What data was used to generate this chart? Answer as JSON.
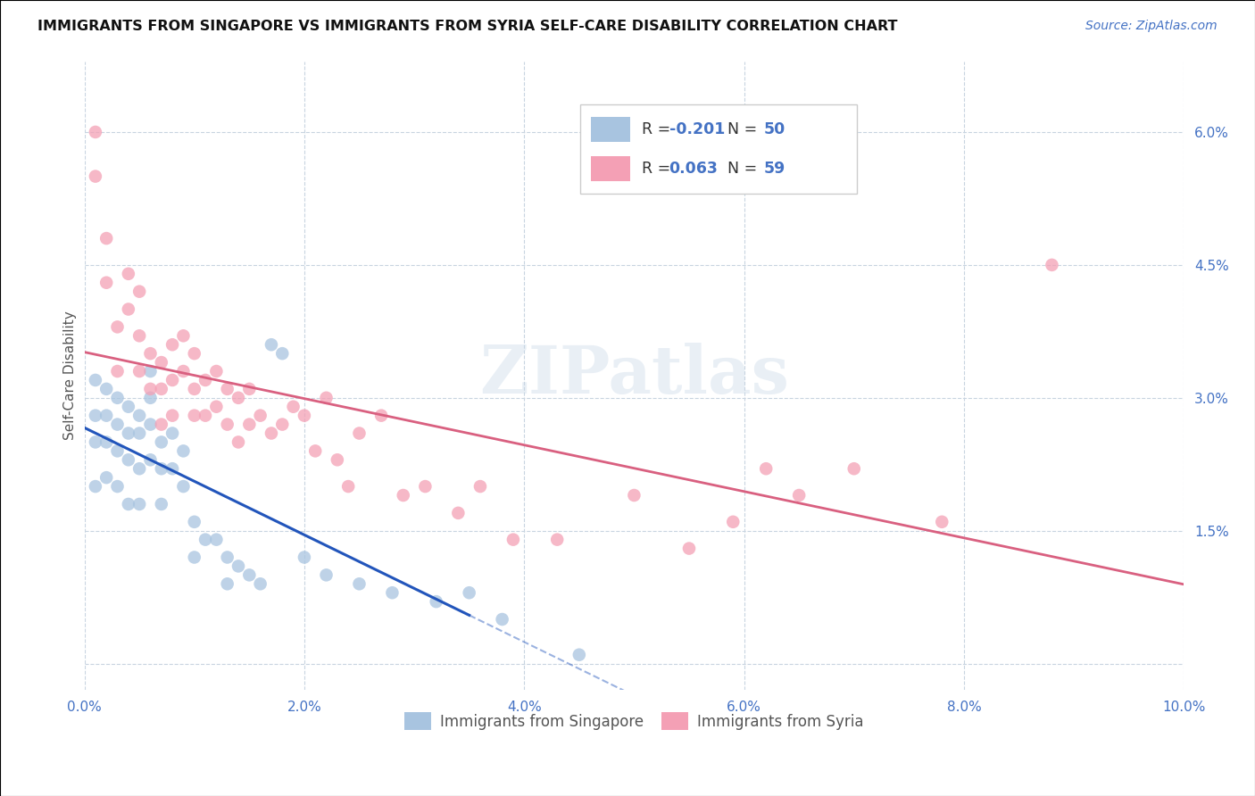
{
  "title": "IMMIGRANTS FROM SINGAPORE VS IMMIGRANTS FROM SYRIA SELF-CARE DISABILITY CORRELATION CHART",
  "source": "Source: ZipAtlas.com",
  "ylabel": "Self-Care Disability",
  "xlim": [
    0,
    0.1
  ],
  "ylim": [
    -0.003,
    0.068
  ],
  "xticks": [
    0.0,
    0.02,
    0.04,
    0.06,
    0.08,
    0.1
  ],
  "yticks_right": [
    0.0,
    0.015,
    0.03,
    0.045,
    0.06
  ],
  "ytick_labels_right": [
    "",
    "1.5%",
    "3.0%",
    "4.5%",
    "6.0%"
  ],
  "xtick_labels": [
    "0.0%",
    "2.0%",
    "4.0%",
    "6.0%",
    "8.0%",
    "10.0%"
  ],
  "singapore_color": "#a8c4e0",
  "syria_color": "#f4a0b5",
  "singapore_line_color": "#2255bb",
  "syria_line_color": "#d96080",
  "R_singapore": -0.201,
  "N_singapore": 50,
  "R_syria": 0.063,
  "N_syria": 59,
  "legend_label_singapore": "Immigrants from Singapore",
  "legend_label_syria": "Immigrants from Syria",
  "watermark": "ZIPatlas",
  "singapore_x": [
    0.001,
    0.001,
    0.001,
    0.001,
    0.002,
    0.002,
    0.002,
    0.002,
    0.003,
    0.003,
    0.003,
    0.003,
    0.004,
    0.004,
    0.004,
    0.004,
    0.005,
    0.005,
    0.005,
    0.005,
    0.006,
    0.006,
    0.006,
    0.006,
    0.007,
    0.007,
    0.007,
    0.008,
    0.008,
    0.009,
    0.009,
    0.01,
    0.01,
    0.011,
    0.012,
    0.013,
    0.013,
    0.014,
    0.015,
    0.016,
    0.017,
    0.018,
    0.02,
    0.022,
    0.025,
    0.028,
    0.032,
    0.035,
    0.038,
    0.045
  ],
  "singapore_y": [
    0.032,
    0.028,
    0.025,
    0.02,
    0.031,
    0.028,
    0.025,
    0.021,
    0.03,
    0.027,
    0.024,
    0.02,
    0.029,
    0.026,
    0.023,
    0.018,
    0.028,
    0.026,
    0.022,
    0.018,
    0.033,
    0.03,
    0.027,
    0.023,
    0.025,
    0.022,
    0.018,
    0.026,
    0.022,
    0.024,
    0.02,
    0.016,
    0.012,
    0.014,
    0.014,
    0.012,
    0.009,
    0.011,
    0.01,
    0.009,
    0.036,
    0.035,
    0.012,
    0.01,
    0.009,
    0.008,
    0.007,
    0.008,
    0.005,
    0.001
  ],
  "syria_x": [
    0.001,
    0.001,
    0.002,
    0.002,
    0.003,
    0.003,
    0.004,
    0.004,
    0.005,
    0.005,
    0.005,
    0.006,
    0.006,
    0.007,
    0.007,
    0.007,
    0.008,
    0.008,
    0.008,
    0.009,
    0.009,
    0.01,
    0.01,
    0.01,
    0.011,
    0.011,
    0.012,
    0.012,
    0.013,
    0.013,
    0.014,
    0.014,
    0.015,
    0.015,
    0.016,
    0.017,
    0.018,
    0.019,
    0.02,
    0.021,
    0.022,
    0.023,
    0.024,
    0.025,
    0.027,
    0.029,
    0.031,
    0.034,
    0.036,
    0.039,
    0.043,
    0.05,
    0.055,
    0.059,
    0.062,
    0.065,
    0.07,
    0.078,
    0.088
  ],
  "syria_y": [
    0.06,
    0.055,
    0.048,
    0.043,
    0.038,
    0.033,
    0.044,
    0.04,
    0.042,
    0.037,
    0.033,
    0.035,
    0.031,
    0.034,
    0.031,
    0.027,
    0.036,
    0.032,
    0.028,
    0.037,
    0.033,
    0.035,
    0.031,
    0.028,
    0.032,
    0.028,
    0.033,
    0.029,
    0.031,
    0.027,
    0.03,
    0.025,
    0.031,
    0.027,
    0.028,
    0.026,
    0.027,
    0.029,
    0.028,
    0.024,
    0.03,
    0.023,
    0.02,
    0.026,
    0.028,
    0.019,
    0.02,
    0.017,
    0.02,
    0.014,
    0.014,
    0.019,
    0.013,
    0.016,
    0.022,
    0.019,
    0.022,
    0.016,
    0.045
  ]
}
